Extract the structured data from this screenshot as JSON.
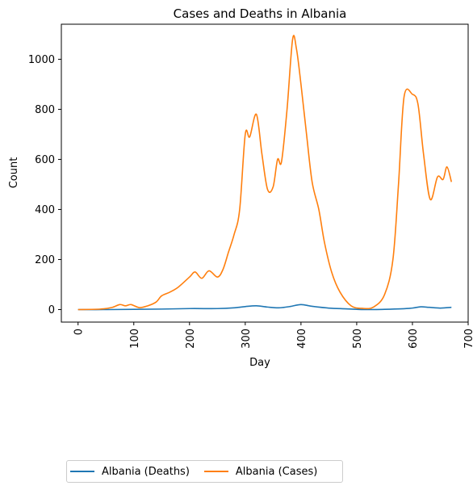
{
  "chart_data": {
    "type": "line",
    "title": "Cases and Deaths in Albania",
    "xlabel": "Day",
    "ylabel": "Count",
    "xlim": [
      -30,
      700
    ],
    "ylim": [
      -50,
      1140
    ],
    "xticks": [
      0,
      100,
      200,
      300,
      400,
      500,
      600,
      700
    ],
    "yticks": [
      0,
      200,
      400,
      600,
      800,
      1000
    ],
    "x_tick_rotation": 90,
    "grid": false,
    "legend_position": "bottom-left, below plot",
    "series": [
      {
        "name": "Albania (Deaths)",
        "color": "#1f77b4",
        "x": [
          0,
          50,
          100,
          150,
          200,
          250,
          280,
          300,
          320,
          340,
          360,
          380,
          400,
          420,
          450,
          480,
          500,
          520,
          550,
          580,
          600,
          615,
          630,
          650,
          670
        ],
        "y": [
          0,
          0,
          1,
          2,
          4,
          4,
          7,
          12,
          15,
          10,
          7,
          12,
          20,
          13,
          6,
          3,
          1,
          0,
          1,
          3,
          6,
          11,
          9,
          6,
          9
        ]
      },
      {
        "name": "Albania (Cases)",
        "color": "#ff7f0e",
        "x": [
          0,
          40,
          60,
          75,
          85,
          95,
          110,
          125,
          140,
          150,
          165,
          180,
          200,
          210,
          222,
          235,
          250,
          260,
          270,
          280,
          290,
          300,
          308,
          320,
          330,
          340,
          350,
          358,
          365,
          375,
          385,
          392,
          400,
          410,
          420,
          432,
          442,
          455,
          470,
          490,
          510,
          530,
          550,
          565,
          575,
          585,
          600,
          610,
          620,
          632,
          645,
          655,
          662,
          670
        ],
        "y": [
          0,
          2,
          8,
          20,
          15,
          20,
          8,
          15,
          30,
          55,
          70,
          90,
          130,
          150,
          125,
          155,
          130,
          160,
          230,
          300,
          400,
          700,
          690,
          780,
          620,
          480,
          490,
          600,
          590,
          800,
          1080,
          1040,
          900,
          700,
          510,
          400,
          270,
          150,
          70,
          15,
          5,
          10,
          60,
          200,
          500,
          850,
          860,
          820,
          620,
          440,
          530,
          520,
          570,
          510
        ]
      }
    ]
  }
}
